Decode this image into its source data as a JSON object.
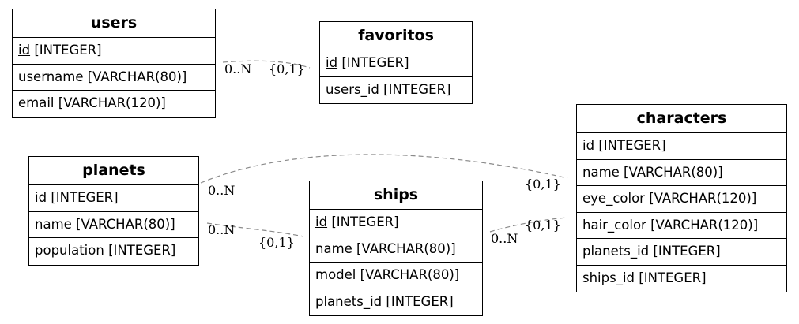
{
  "tables": {
    "users": {
      "name": "users",
      "rows": [
        {
          "col": "id",
          "type": "[INTEGER]",
          "pk": true
        },
        {
          "col": "username",
          "type": "[VARCHAR(80)]"
        },
        {
          "col": "email",
          "type": "[VARCHAR(120)]"
        }
      ]
    },
    "favoritos": {
      "name": "favoritos",
      "rows": [
        {
          "col": "id",
          "type": "[INTEGER]",
          "pk": true
        },
        {
          "col": "users_id",
          "type": "[INTEGER]"
        }
      ]
    },
    "planets": {
      "name": "planets",
      "rows": [
        {
          "col": "id",
          "type": "[INTEGER]",
          "pk": true
        },
        {
          "col": "name",
          "type": "[VARCHAR(80)]"
        },
        {
          "col": "population",
          "type": "[INTEGER]"
        }
      ]
    },
    "ships": {
      "name": "ships",
      "rows": [
        {
          "col": "id",
          "type": "[INTEGER]",
          "pk": true
        },
        {
          "col": "name",
          "type": "[VARCHAR(80)]"
        },
        {
          "col": "model",
          "type": "[VARCHAR(80)]"
        },
        {
          "col": "planets_id",
          "type": "[INTEGER]"
        }
      ]
    },
    "characters": {
      "name": "characters",
      "rows": [
        {
          "col": "id",
          "type": "[INTEGER]",
          "pk": true
        },
        {
          "col": "name",
          "type": "[VARCHAR(80)]"
        },
        {
          "col": "eye_color",
          "type": "[VARCHAR(120)]"
        },
        {
          "col": "hair_color",
          "type": "[VARCHAR(120)]"
        },
        {
          "col": "planets_id",
          "type": "[INTEGER]"
        },
        {
          "col": "ships_id",
          "type": "[INTEGER]"
        }
      ]
    }
  },
  "relationships": [
    {
      "from": "users",
      "to": "favoritos",
      "from_card": "0..N",
      "to_card": "{0,1}"
    },
    {
      "from": "planets",
      "to": "characters",
      "from_card": "0..N",
      "to_card": "{0,1}"
    },
    {
      "from": "planets",
      "to": "ships",
      "from_card": "0..N",
      "to_card": "{0,1}"
    },
    {
      "from": "ships",
      "to": "characters",
      "from_card": "0..N",
      "to_card": "{0,1}"
    }
  ]
}
